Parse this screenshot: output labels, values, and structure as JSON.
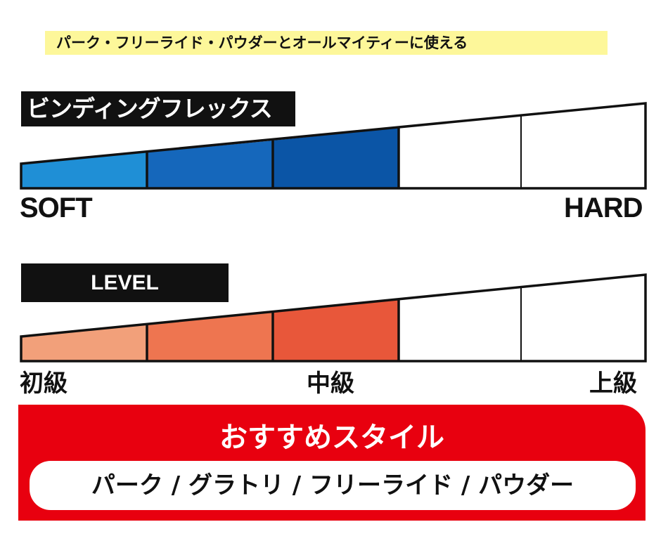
{
  "tagline": "パーク・フリーライド・パウダーとオールマイティーに使える",
  "flex": {
    "title": "ビンディングフレックス",
    "left_label": "SOFT",
    "right_label": "HARD",
    "filled_segments": 3,
    "total_segments": 5,
    "colors": [
      "#1f8fd6",
      "#1567bb",
      "#0b55a6"
    ]
  },
  "level": {
    "title": "LEVEL",
    "labels": [
      "初級",
      "中級",
      "上級"
    ],
    "filled_segments": 3,
    "total_segments": 5,
    "colors": [
      "#f2a07a",
      "#ee7550",
      "#e8573a"
    ]
  },
  "style": {
    "title": "おすすめスタイル",
    "list": "パーク / グラトリ / フリーライド / パウダー",
    "accent": "#e8000f"
  }
}
